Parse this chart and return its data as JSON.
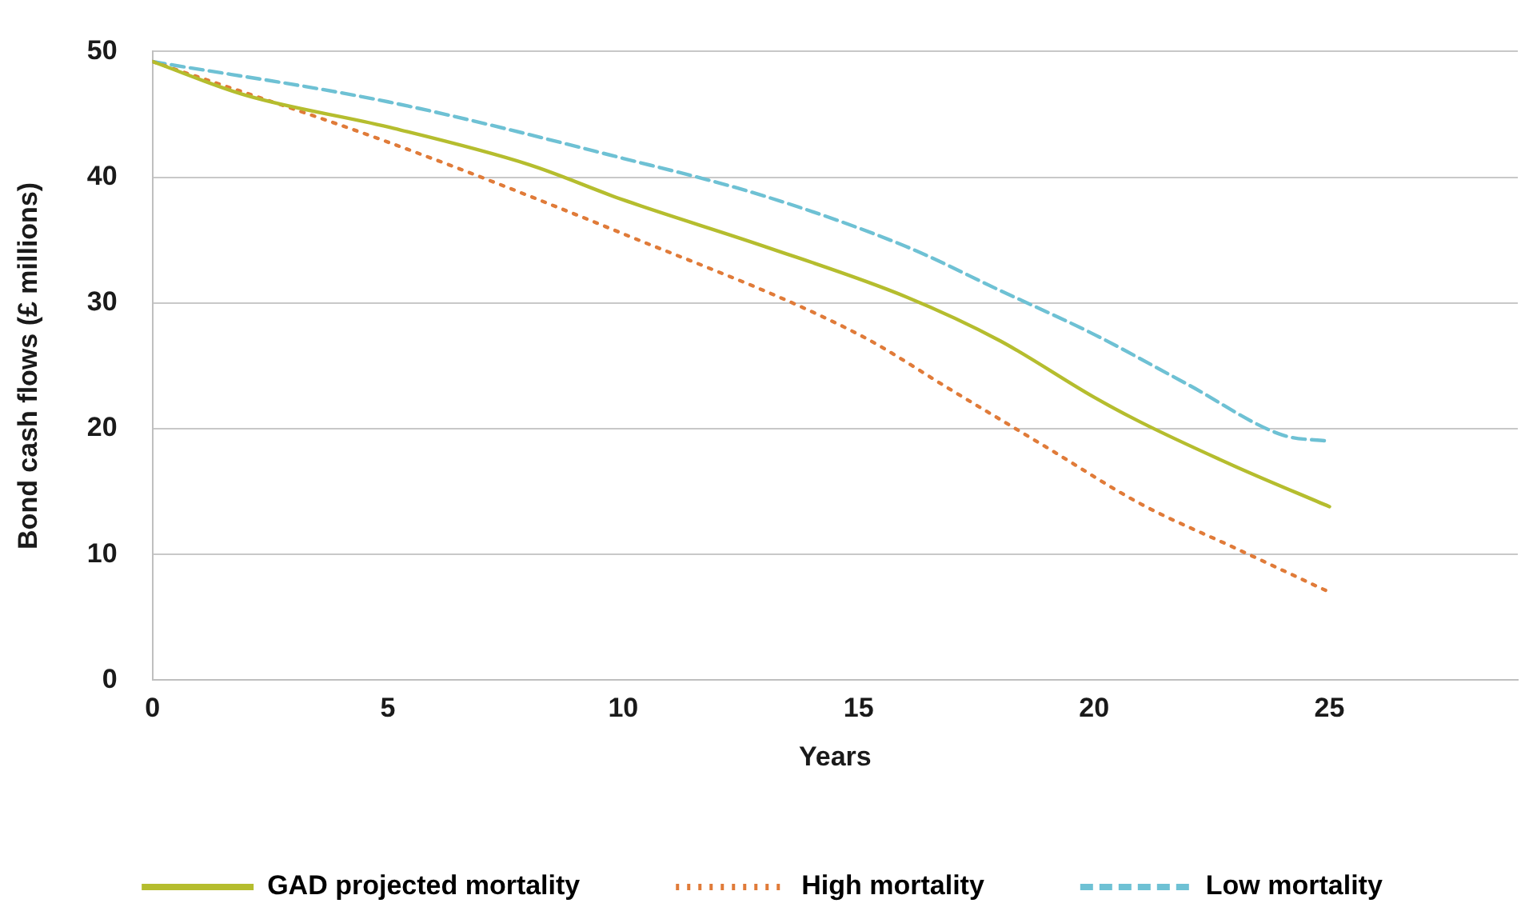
{
  "chart_data": {
    "type": "line",
    "xlabel": "Years",
    "ylabel": "Bond cash flows (£ millions)",
    "xlim": [
      0,
      29
    ],
    "xticks": [
      0,
      5,
      10,
      15,
      20,
      25
    ],
    "ylim": [
      0,
      50
    ],
    "yticks": [
      0,
      10,
      20,
      30,
      40,
      50
    ],
    "grid": "y",
    "legend": "bottom",
    "marker": "none",
    "series": [
      {
        "name": "GAD projected mortality",
        "color": "#b5bd2e",
        "line_style": "solid",
        "x": [
          0,
          2,
          5,
          8,
          10,
          13,
          16,
          18,
          20,
          21,
          23,
          25
        ],
        "values": [
          49.2,
          46.5,
          44,
          41,
          38.2,
          34.5,
          30.5,
          27,
          22.5,
          20.5,
          17,
          13.8
        ]
      },
      {
        "name": "High mortality",
        "color": "#e07b39",
        "line_style": "dotted",
        "x": [
          0,
          5,
          10,
          15,
          17,
          19,
          21,
          23,
          25
        ],
        "values": [
          49.2,
          42.8,
          35.5,
          27.5,
          23,
          18.5,
          14,
          10.5,
          7
        ]
      },
      {
        "name": "Low mortality",
        "color": "#6ec1d4",
        "line_style": "dashed",
        "x": [
          0,
          5,
          10,
          13,
          16,
          18,
          20,
          22,
          24,
          25
        ],
        "values": [
          49.2,
          46,
          41.5,
          38.5,
          34.5,
          31,
          27.5,
          23.5,
          19.5,
          19
        ]
      }
    ]
  }
}
